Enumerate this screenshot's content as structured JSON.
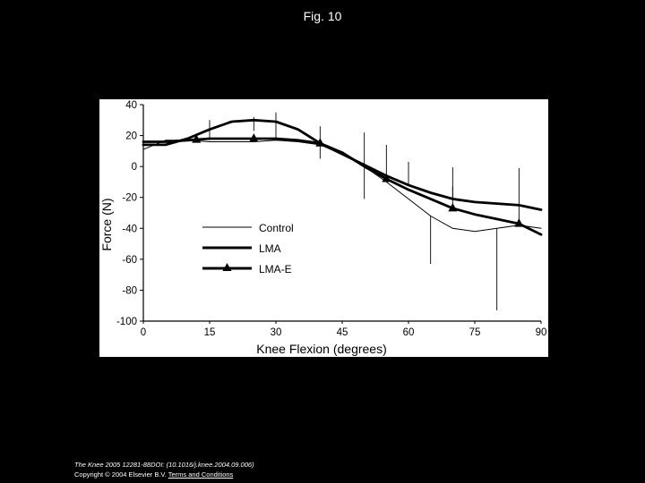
{
  "slide": {
    "title": "Fig. 10"
  },
  "footer": {
    "citation": "The Knee 2005 12281-88DOI: (10.1016/j.knee.2004.09.006)",
    "copyright": "Copyright © 2004 Elsevier B.V.",
    "terms_link": "Terms and Conditions"
  },
  "colors": {
    "background": "#000000",
    "panel": "#ffffff",
    "ink": "#000000",
    "text": "#ffffff"
  },
  "chart_data": {
    "type": "line",
    "xlabel": "Knee Flexion (degrees)",
    "ylabel": "Force (N)",
    "xlim": [
      0,
      90
    ],
    "ylim": [
      -100,
      40
    ],
    "x_ticks": [
      0,
      15,
      30,
      45,
      60,
      75,
      90
    ],
    "y_ticks": [
      40,
      20,
      0,
      -20,
      -40,
      -60,
      -80,
      -100
    ],
    "grid": false,
    "legend_position": "center-left",
    "series": [
      {
        "name": "Control",
        "style": "thin",
        "x": [
          0,
          5,
          10,
          15,
          20,
          25,
          30,
          35,
          40,
          45,
          50,
          55,
          60,
          65,
          70,
          75,
          80,
          85,
          90
        ],
        "y": [
          11,
          17,
          17,
          16,
          16,
          16,
          17,
          16,
          14,
          8,
          0,
          -10,
          -21,
          -32,
          -40,
          -42,
          -40,
          -38,
          -40
        ],
        "error_bars": [
          {
            "x": 30,
            "low": 17,
            "high": 35
          },
          {
            "x": 50,
            "low": -21,
            "high": 0
          },
          {
            "x": 65,
            "low": -63,
            "high": -32
          },
          {
            "x": 80,
            "low": -93,
            "high": -40
          }
        ]
      },
      {
        "name": "LMA",
        "style": "thick",
        "x": [
          0,
          5,
          10,
          15,
          20,
          25,
          30,
          35,
          40,
          45,
          50,
          55,
          60,
          65,
          70,
          75,
          80,
          85,
          90
        ],
        "y": [
          14,
          14,
          18,
          24,
          29,
          30,
          29,
          24,
          15,
          8,
          1,
          -6,
          -12,
          -17,
          -21,
          -23,
          -24,
          -25,
          -28
        ],
        "error_bars": [
          {
            "x": 15,
            "low": 17,
            "high": 30
          },
          {
            "x": 25,
            "low": 23,
            "high": 32
          },
          {
            "x": 50,
            "low": 1,
            "high": 22
          },
          {
            "x": 60,
            "low": -12,
            "high": 3
          },
          {
            "x": 70,
            "low": -21,
            "high": -0.5
          },
          {
            "x": 85,
            "low": -25,
            "high": -1
          }
        ]
      },
      {
        "name": "LMA-E",
        "style": "thick-triangle",
        "x": [
          0,
          5,
          10,
          15,
          20,
          25,
          30,
          35,
          40,
          45,
          50,
          55,
          60,
          65,
          70,
          75,
          80,
          85,
          90
        ],
        "y": [
          16,
          16,
          17,
          18,
          18,
          18,
          18,
          17,
          15,
          9,
          0,
          -8,
          -15,
          -21,
          -27,
          -31,
          -34,
          -37,
          -44
        ],
        "markers_x": [
          12,
          25,
          40,
          55,
          70,
          85
        ],
        "error_bars": [
          {
            "x": 40,
            "low": 5,
            "high": 26
          },
          {
            "x": 55,
            "low": -8,
            "high": 14
          },
          {
            "x": 70,
            "low": -27,
            "high": -13
          },
          {
            "x": 85,
            "low": -37,
            "high": -25
          }
        ]
      }
    ]
  }
}
